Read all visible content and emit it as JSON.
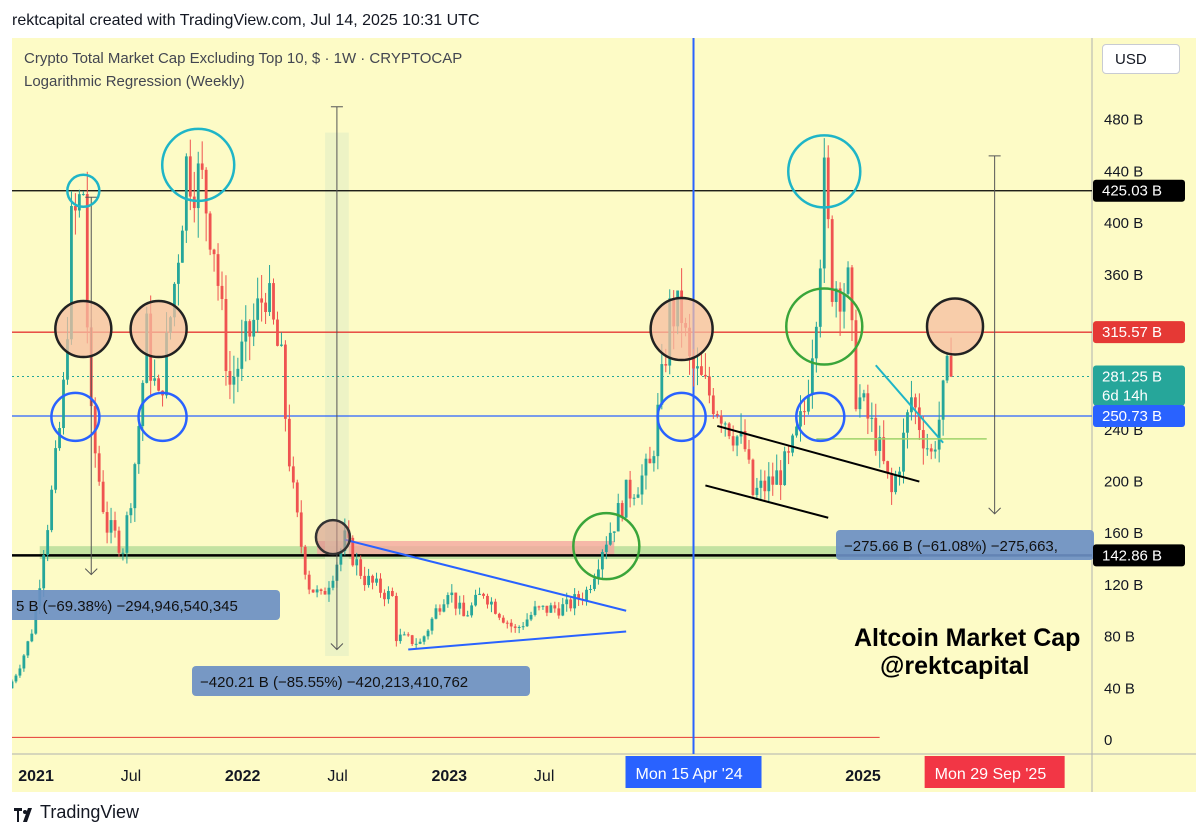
{
  "header": {
    "text": "rektcapital created with TradingView.com, Jul 14, 2025 10:31 UTC"
  },
  "chart_data": {
    "type": "candlestick",
    "title": "Crypto Total Market Cap Excluding Top 10, $ · 1W · CRYPTOCAP",
    "subtitle": "Logarithmic Regression (Weekly)",
    "currency_button": "USD",
    "background": "#fdfbc6",
    "up_color": "#26a69a",
    "down_color": "#ef5350",
    "y_axis": {
      "unit": "B",
      "ylim": [
        0,
        520
      ],
      "ticks": [
        "0",
        "40 B",
        "80 B",
        "120 B",
        "160 B",
        "200 B",
        "240 B",
        "280 B",
        "320 B",
        "360 B",
        "400 B",
        "440 B",
        "480 B"
      ],
      "tick_values": [
        0,
        40,
        80,
        120,
        160,
        200,
        240,
        280,
        320,
        360,
        400,
        440,
        480
      ],
      "price_labels": [
        {
          "text": "425.03 B",
          "value": 425.03,
          "color": "#000000"
        },
        {
          "text": "315.57 B",
          "value": 315.57,
          "color": "#e53935"
        },
        {
          "text": "281.25 B",
          "sub": "6d 14h",
          "value": 281.25,
          "color": "#26a69a"
        },
        {
          "text": "250.73 B",
          "value": 250.73,
          "color": "#2962ff"
        },
        {
          "text": "142.86 B",
          "value": 142.86,
          "color": "#000000"
        }
      ]
    },
    "x_axis": {
      "xlim": [
        "2020-12-28",
        "2026-03-20"
      ],
      "ticks": [
        {
          "label": "2021",
          "date": "2021-01-01"
        },
        {
          "label": "Jul",
          "date": "2021-07-01"
        },
        {
          "label": "2022",
          "date": "2022-01-01"
        },
        {
          "label": "Jul",
          "date": "2022-07-01"
        },
        {
          "label": "2023",
          "date": "2023-01-01"
        },
        {
          "label": "Jul",
          "date": "2023-07-01"
        },
        {
          "label": "2025",
          "date": "2025-01-01"
        }
      ],
      "highlight_labels": [
        {
          "text": "Mon 15 Apr '24",
          "date": "2024-04-15",
          "color": "#2962ff"
        },
        {
          "text": "Mon 29 Sep '25",
          "date": "2025-09-29",
          "color": "#f23645"
        }
      ]
    },
    "horizontal_levels": [
      {
        "value": 425.03,
        "color": "#000000"
      },
      {
        "value": 315.57,
        "color": "#e53935"
      },
      {
        "value": 250.73,
        "color": "#2962ff"
      },
      {
        "value": 142.86,
        "color": "#000000"
      }
    ],
    "vertical_line_date": "2024-04-15",
    "price_path": [
      [
        "2020-12-28",
        40
      ],
      [
        "2021-02-08",
        85
      ],
      [
        "2021-03-01",
        150
      ],
      [
        "2021-04-05",
        270
      ],
      [
        "2021-04-19",
        395
      ],
      [
        "2021-05-10",
        425
      ],
      [
        "2021-05-24",
        245
      ],
      [
        "2021-06-21",
        165
      ],
      [
        "2021-07-19",
        150
      ],
      [
        "2021-08-09",
        215
      ],
      [
        "2021-08-30",
        315
      ],
      [
        "2021-09-06",
        290
      ],
      [
        "2021-09-20",
        260
      ],
      [
        "2021-11-08",
        445
      ],
      [
        "2021-12-06",
        430
      ],
      [
        "2021-12-27",
        385
      ],
      [
        "2022-01-24",
        275
      ],
      [
        "2022-03-28",
        350
      ],
      [
        "2022-04-25",
        290
      ],
      [
        "2022-05-16",
        190
      ],
      [
        "2022-06-13",
        120
      ],
      [
        "2022-07-04",
        110
      ],
      [
        "2022-08-15",
        155
      ],
      [
        "2022-09-19",
        125
      ],
      [
        "2022-11-07",
        110
      ],
      [
        "2022-11-14",
        80
      ],
      [
        "2022-12-26",
        75
      ],
      [
        "2023-01-23",
        100
      ],
      [
        "2023-02-13",
        118
      ],
      [
        "2023-03-13",
        95
      ],
      [
        "2023-04-17",
        115
      ],
      [
        "2023-06-12",
        85
      ],
      [
        "2023-07-17",
        100
      ],
      [
        "2023-09-11",
        103
      ],
      [
        "2023-10-16",
        115
      ],
      [
        "2023-11-13",
        150
      ],
      [
        "2023-12-25",
        190
      ],
      [
        "2024-02-05",
        210
      ],
      [
        "2024-03-11",
        330
      ],
      [
        "2024-04-01",
        330
      ],
      [
        "2024-04-15",
        290
      ],
      [
        "2024-06-10",
        255
      ],
      [
        "2024-07-22",
        225
      ],
      [
        "2024-08-05",
        190
      ],
      [
        "2024-09-09",
        200
      ],
      [
        "2024-10-07",
        215
      ],
      [
        "2024-11-04",
        255
      ],
      [
        "2024-11-25",
        340
      ],
      [
        "2024-12-09",
        430
      ],
      [
        "2024-12-23",
        355
      ],
      [
        "2025-01-20",
        350
      ],
      [
        "2025-02-03",
        270
      ],
      [
        "2025-03-10",
        235
      ],
      [
        "2025-04-07",
        190
      ],
      [
        "2025-05-12",
        265
      ],
      [
        "2025-06-16",
        220
      ],
      [
        "2025-07-14",
        281.25
      ]
    ],
    "annotations": {
      "measure_texts": [
        {
          "text": "5 B (−69.38%) −294,946,540,345"
        },
        {
          "text": "−420.21 B (−85.55%) −420,213,410,762"
        },
        {
          "text": "−275.66 B (−61.08%) −275,663,"
        }
      ],
      "watermark_line1": "Altcoin Market Cap",
      "watermark_line2": "@rektcapital"
    }
  },
  "footer": {
    "brand": "TradingView"
  }
}
